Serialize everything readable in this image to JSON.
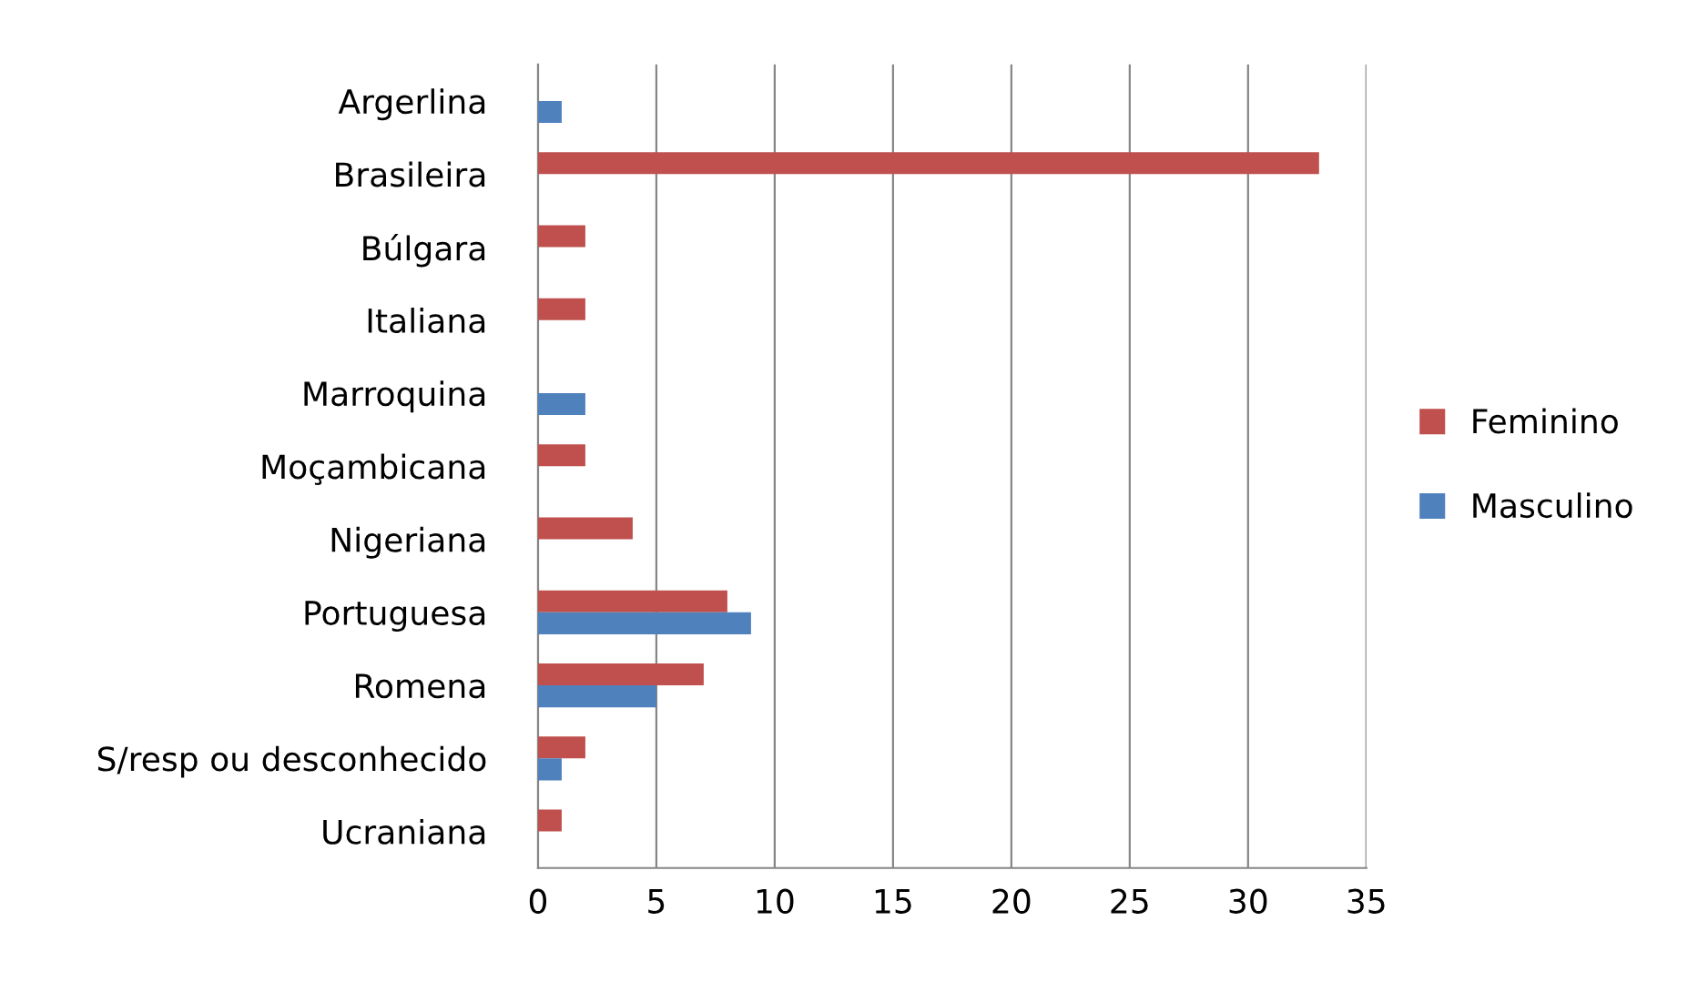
{
  "chart_data": {
    "type": "bar",
    "orientation": "horizontal",
    "categories": [
      "Argerlina",
      "Brasileira",
      "Búlgara",
      "Italiana",
      "Marroquina",
      "Moçambicana",
      "Nigeriana",
      "Portuguesa",
      "Romena",
      "S/resp ou desconhecido",
      "Ucraniana"
    ],
    "series": [
      {
        "name": "Feminino",
        "color": "#c0504d",
        "values": [
          null,
          33,
          2,
          2,
          null,
          2,
          4,
          8,
          7,
          2,
          1
        ]
      },
      {
        "name": "Masculino",
        "color": "#4f81bd",
        "values": [
          1,
          null,
          null,
          null,
          2,
          null,
          null,
          9,
          5,
          1,
          null
        ]
      }
    ],
    "xlim": [
      0,
      35
    ],
    "xticks": [
      0,
      5,
      10,
      15,
      20,
      25,
      30,
      35
    ],
    "grid": "x",
    "legend": "right"
  }
}
